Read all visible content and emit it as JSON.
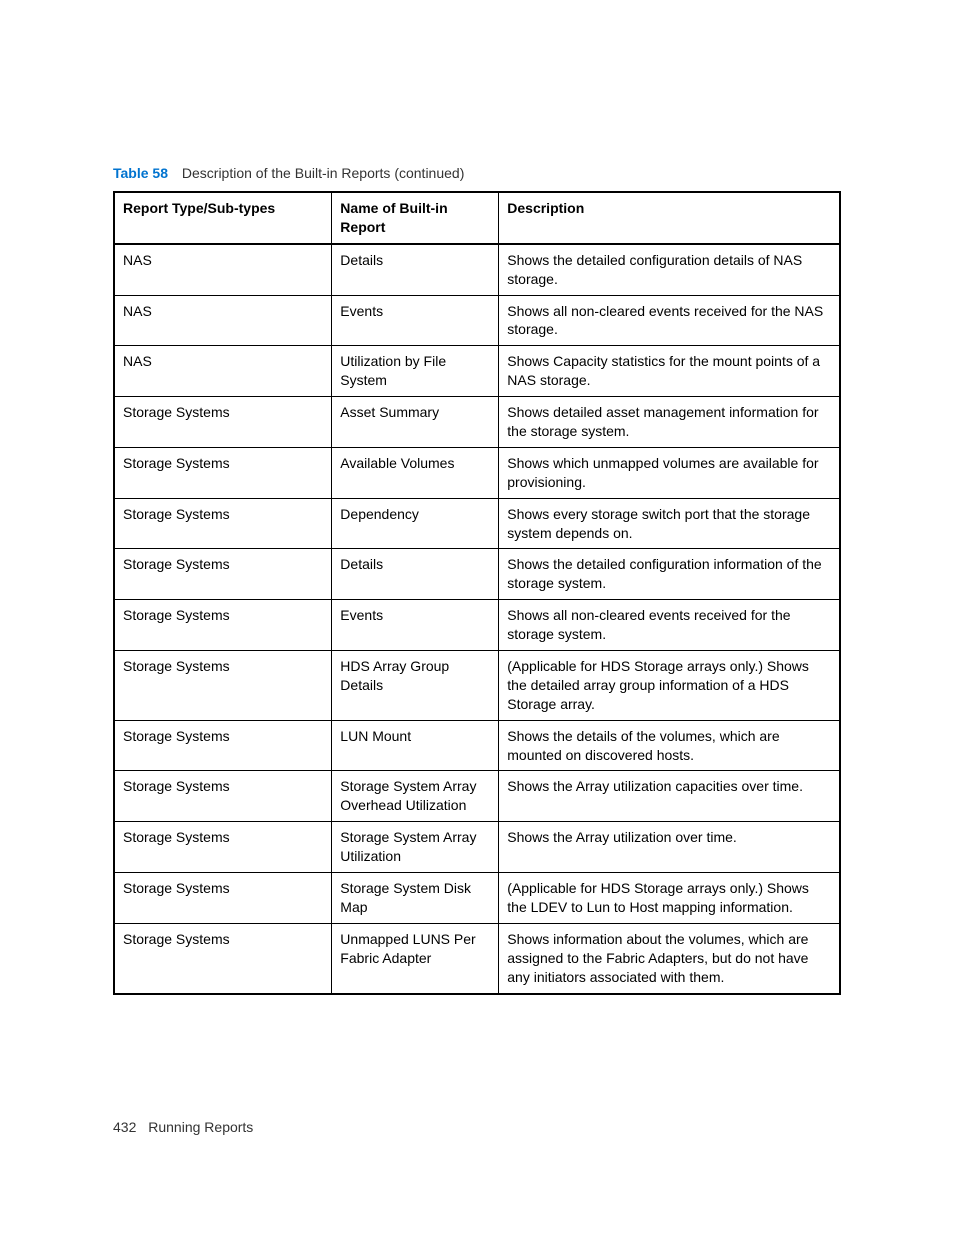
{
  "caption": {
    "label": "Table 58",
    "text": "Description of the Built-in Reports (continued)"
  },
  "table": {
    "headers": [
      "Report Type/Sub-types",
      "Name of Built-in Report",
      "Description"
    ],
    "rows": [
      [
        "NAS",
        "Details",
        "Shows the detailed configuration details of NAS storage."
      ],
      [
        "NAS",
        "Events",
        "Shows all non-cleared events received for the NAS storage."
      ],
      [
        "NAS",
        "Utilization by File System",
        "Shows Capacity statistics for the mount points of a NAS storage."
      ],
      [
        "Storage Systems",
        "Asset Summary",
        "Shows detailed asset management information for the storage system."
      ],
      [
        "Storage Systems",
        "Available Volumes",
        "Shows which unmapped volumes are available for provisioning."
      ],
      [
        "Storage Systems",
        "Dependency",
        "Shows every storage switch port that the storage system depends on."
      ],
      [
        "Storage Systems",
        "Details",
        "Shows the detailed configuration information of the storage system."
      ],
      [
        "Storage Systems",
        "Events",
        "Shows all non-cleared events received for the storage system."
      ],
      [
        "Storage Systems",
        "HDS Array Group Details",
        "(Applicable for HDS Storage arrays only.) Shows the detailed array group information of a HDS Storage array."
      ],
      [
        "Storage Systems",
        "LUN Mount",
        "Shows the details of the volumes, which are mounted on discovered hosts."
      ],
      [
        "Storage Systems",
        "Storage System Array Overhead Utilization",
        "Shows the Array utilization capacities over time."
      ],
      [
        "Storage Systems",
        "Storage System Array Utilization",
        "Shows the Array utilization over time."
      ],
      [
        "Storage Systems",
        "Storage System Disk Map",
        "(Applicable for HDS Storage arrays only.) Shows the LDEV to Lun to Host mapping information."
      ],
      [
        "Storage Systems",
        "Unmapped LUNS Per Fabric Adapter",
        "Shows information about the volumes, which are assigned to the Fabric Adapters, but do not have any initiators associated with them."
      ]
    ]
  },
  "footer": {
    "page": "432",
    "title": "Running Reports"
  },
  "styles": {
    "accent_color": "#0073cf",
    "border_color": "#000000",
    "background_color": "#ffffff",
    "text_color": "#333333",
    "font_family": "Arial, Helvetica, sans-serif",
    "base_fontsize": 14,
    "col_widths_pct": [
      30,
      23,
      47
    ]
  }
}
